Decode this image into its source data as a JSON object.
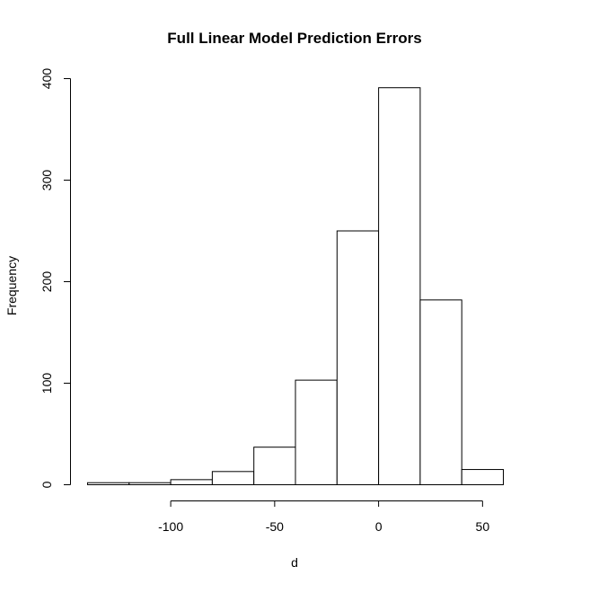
{
  "chart_data": {
    "type": "bar",
    "title": "Full Linear Model Prediction Errors",
    "xlabel": "d",
    "ylabel": "Frequency",
    "bin_edges": [
      -140,
      -120,
      -100,
      -80,
      -60,
      -40,
      -20,
      0,
      20,
      40,
      60
    ],
    "values": [
      2,
      2,
      5,
      13,
      37,
      103,
      250,
      391,
      182,
      15
    ],
    "xlim": [
      -140,
      60
    ],
    "ylim": [
      0,
      400
    ],
    "x_ticks": [
      -100,
      -50,
      0,
      50
    ],
    "y_ticks": [
      0,
      100,
      200,
      300,
      400
    ],
    "x_tick_labels": [
      "-100",
      "-50",
      "0",
      "50"
    ],
    "y_tick_labels": [
      "0",
      "100",
      "200",
      "300",
      "400"
    ],
    "grid": false,
    "legend": "none"
  }
}
